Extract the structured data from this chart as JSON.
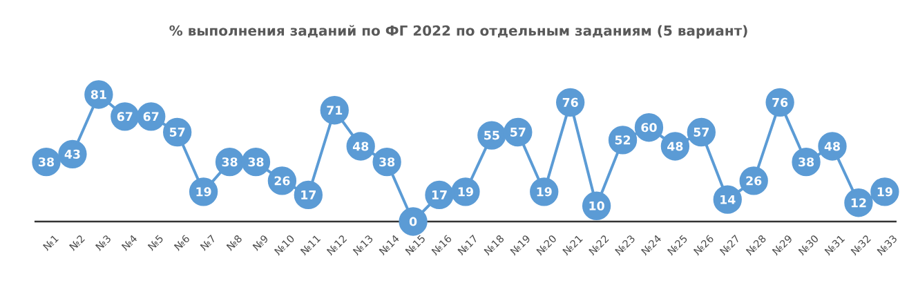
{
  "chart_data": {
    "type": "line",
    "title": "% выполнения заданий по ФГ 2022 по отдельным заданиям (5 вариант)",
    "categories": [
      "№1",
      "№2",
      "№3",
      "№4",
      "№5",
      "№6",
      "№7",
      "№8",
      "№9",
      "№10",
      "№11",
      "№12",
      "№13",
      "№14",
      "№15",
      "№16",
      "№17",
      "№18",
      "№19",
      "№20",
      "№21",
      "№22",
      "№23",
      "№24",
      "№25",
      "№26",
      "№27",
      "№28",
      "№29",
      "№30",
      "№31",
      "№32",
      "№33"
    ],
    "values": [
      38,
      43,
      81,
      67,
      67,
      57,
      19,
      38,
      38,
      26,
      17,
      71,
      48,
      38,
      0,
      17,
      19,
      55,
      57,
      19,
      76,
      10,
      52,
      60,
      48,
      57,
      14,
      26,
      76,
      38,
      48,
      12,
      19
    ],
    "color": "#5b9bd5",
    "marker": "circle",
    "data_labels": true
  }
}
